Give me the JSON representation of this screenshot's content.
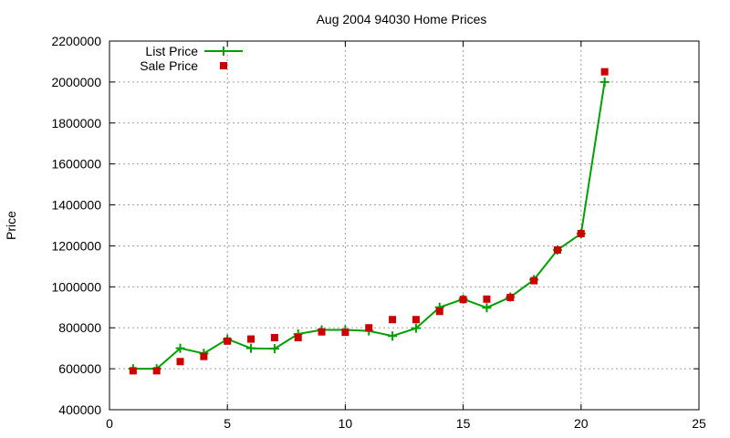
{
  "chart_data": {
    "type": "line",
    "title": "Aug 2004 94030 Home Prices",
    "xlabel": "",
    "ylabel": "Price",
    "xlim": [
      0,
      25
    ],
    "ylim": [
      400000,
      2200000
    ],
    "xticks": [
      0,
      5,
      10,
      15,
      20,
      25
    ],
    "yticks": [
      400000,
      600000,
      800000,
      1000000,
      1200000,
      1400000,
      1600000,
      1800000,
      2000000,
      2200000
    ],
    "grid": true,
    "legend_position": "top-left",
    "series": [
      {
        "name": "List Price",
        "style": "linespoints",
        "color": "#00a000",
        "x": [
          1,
          2,
          3,
          4,
          5,
          6,
          7,
          8,
          9,
          10,
          11,
          12,
          13,
          14,
          15,
          16,
          17,
          18,
          19,
          20,
          21
        ],
        "y": [
          600000,
          600000,
          700000,
          675000,
          745000,
          700000,
          698000,
          770000,
          790000,
          790000,
          785000,
          760000,
          798000,
          900000,
          940000,
          898000,
          950000,
          1035000,
          1180000,
          1260000,
          2000000
        ]
      },
      {
        "name": "Sale Price",
        "style": "points",
        "color": "#cc0000",
        "x": [
          1,
          2,
          3,
          4,
          5,
          6,
          7,
          8,
          9,
          10,
          11,
          12,
          13,
          14,
          15,
          16,
          17,
          18,
          19,
          20,
          21
        ],
        "y": [
          590000,
          590000,
          635000,
          660000,
          735000,
          745000,
          752000,
          752000,
          780000,
          778000,
          800000,
          840000,
          840000,
          880000,
          938000,
          940000,
          948000,
          1030000,
          1180000,
          1260000,
          2050000
        ]
      }
    ]
  }
}
